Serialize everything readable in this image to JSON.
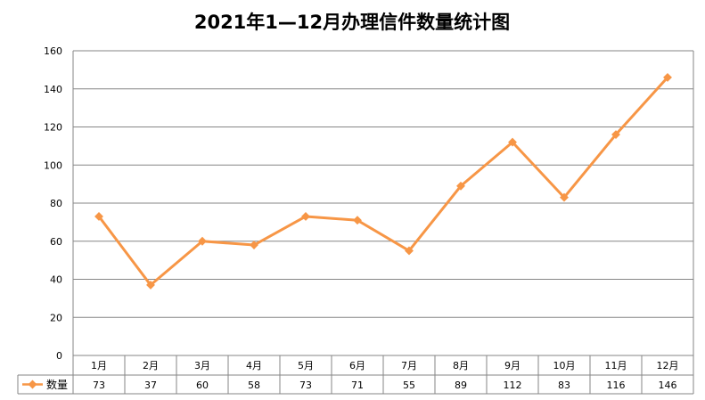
{
  "chart_data": {
    "type": "line",
    "title": "2021年1—12月办理信件数量统计图",
    "categories": [
      "1月",
      "2月",
      "3月",
      "4月",
      "5月",
      "6月",
      "7月",
      "8月",
      "9月",
      "10月",
      "11月",
      "12月"
    ],
    "series": [
      {
        "name": "数量",
        "values": [
          73,
          37,
          60,
          58,
          73,
          71,
          55,
          89,
          112,
          83,
          116,
          146
        ]
      }
    ],
    "ylim": [
      0,
      160
    ],
    "yticks": [
      0,
      20,
      40,
      60,
      80,
      100,
      120,
      140,
      160
    ],
    "grid": true,
    "legend": "bottom-left data table",
    "colors": {
      "line": "#f79646",
      "grid": "#868686",
      "axis": "#868686"
    }
  }
}
